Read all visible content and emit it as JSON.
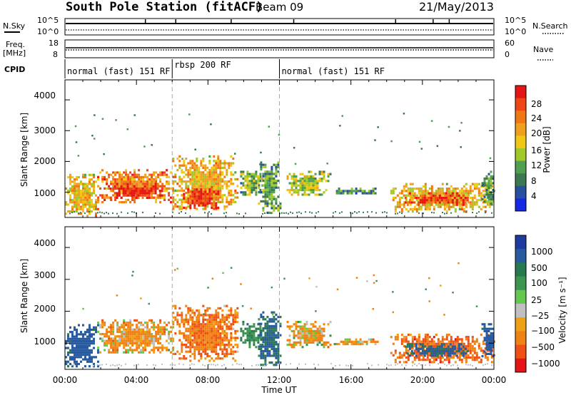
{
  "header": {
    "station": "South Pole Station (fitACF)",
    "beam": "Beam 09",
    "date": "21/May/2013"
  },
  "summary": {
    "nsky_label": "N.Sky",
    "nsearch_label": "N.Search",
    "nsky_ticks": [
      "10^5",
      "10^0"
    ],
    "nsearch_ticks": [
      "10^5",
      "10^0"
    ],
    "freq_label": "Freq.",
    "freq_unit": "[MHz]",
    "freq_ticks": [
      "18",
      "8"
    ],
    "nave_label": "Nave",
    "nave_ticks": [
      "60",
      "0"
    ],
    "cpid_label": "CPID",
    "cpid_segments": [
      {
        "label": "normal (fast) 151 RF",
        "start_h": 0,
        "end_h": 6
      },
      {
        "label": "rbsp 200 RF",
        "start_h": 6,
        "end_h": 12
      },
      {
        "label": "normal (fast) 151 RF",
        "start_h": 12,
        "end_h": 24
      }
    ]
  },
  "panels": {
    "power": {
      "ylabel": "Slant Range [km]",
      "yticks": [
        "4000",
        "3000",
        "2000",
        "1000"
      ],
      "colorbar_label": "Power [dB]",
      "colorbar_ticks": [
        "28",
        "24",
        "20",
        "16",
        "12",
        "8",
        "4"
      ]
    },
    "velocity": {
      "ylabel": "Slant Range [km]",
      "yticks": [
        "4000",
        "3000",
        "2000",
        "1000"
      ],
      "colorbar_label": "Velocity [m s⁻¹]",
      "colorbar_ticks": [
        "1000",
        "500",
        "100",
        "25",
        "−25",
        "−100",
        "−500",
        "−1000"
      ]
    }
  },
  "xaxis": {
    "label": "Time UT",
    "ticks": [
      "00:00",
      "04:00",
      "08:00",
      "12:00",
      "16:00",
      "20:00",
      "00:00"
    ]
  },
  "colors": {
    "power_scale": [
      "#1428e6",
      "#2850a0",
      "#3c7850",
      "#50a050",
      "#a0c828",
      "#f0c814",
      "#f0a01e",
      "#f07814",
      "#f04614",
      "#e61414"
    ],
    "velocity_scale": [
      "#1e3ca0",
      "#285aa0",
      "#287850",
      "#3c9650",
      "#64c850",
      "#c0c0c0",
      "#f0a014",
      "#f08214",
      "#f05014",
      "#e61414"
    ]
  },
  "chart_data": [
    {
      "type": "heatmap",
      "title": "Power",
      "x_range_h": [
        0,
        24
      ],
      "y_range_km": [
        180,
        4650
      ],
      "ylabel": "Slant Range [km]",
      "xlabel": "Time UT",
      "color_range": [
        0,
        30
      ],
      "colorbar_label": "Power [dB]",
      "echo_regions": [
        {
          "t0": 0.0,
          "t1": 1.8,
          "r0": 250,
          "r1": 1600,
          "level": 18
        },
        {
          "t0": 1.8,
          "t1": 6.0,
          "r0": 700,
          "r1": 1750,
          "level": 22
        },
        {
          "t0": 2.5,
          "t1": 5.5,
          "r0": 800,
          "r1": 1300,
          "level": 28
        },
        {
          "t0": 6.0,
          "t1": 9.6,
          "r0": 450,
          "r1": 2200,
          "level": 18
        },
        {
          "t0": 6.6,
          "t1": 8.6,
          "r0": 500,
          "r1": 1200,
          "level": 26
        },
        {
          "t0": 9.8,
          "t1": 11.0,
          "r0": 900,
          "r1": 1700,
          "level": 12
        },
        {
          "t0": 10.8,
          "t1": 12.0,
          "r0": 300,
          "r1": 2000,
          "level": 10
        },
        {
          "t0": 12.4,
          "t1": 14.8,
          "r0": 900,
          "r1": 1700,
          "level": 14
        },
        {
          "t0": 14.8,
          "t1": 17.5,
          "r0": 950,
          "r1": 1150,
          "level": 8
        },
        {
          "t0": 18.2,
          "t1": 24.0,
          "r0": 400,
          "r1": 1300,
          "level": 18
        },
        {
          "t0": 19.0,
          "t1": 22.5,
          "r0": 600,
          "r1": 1000,
          "level": 26
        },
        {
          "t0": 23.3,
          "t1": 24.0,
          "r0": 600,
          "r1": 1700,
          "level": 10
        }
      ]
    },
    {
      "type": "heatmap",
      "title": "Velocity",
      "x_range_h": [
        0,
        24
      ],
      "y_range_km": [
        180,
        4650
      ],
      "ylabel": "Slant Range [km]",
      "xlabel": "Time UT",
      "color_range": [
        -1000,
        1000
      ],
      "colorbar_label": "Velocity [m s⁻¹]",
      "echo_regions": [
        {
          "t0": 0.0,
          "t1": 1.8,
          "r0": 250,
          "r1": 1600,
          "level": 700
        },
        {
          "t0": 1.8,
          "t1": 6.0,
          "r0": 700,
          "r1": 1750,
          "level": -120
        },
        {
          "t0": 6.0,
          "t1": 9.6,
          "r0": 450,
          "r1": 2200,
          "level": -250
        },
        {
          "t0": 9.8,
          "t1": 11.0,
          "r0": 900,
          "r1": 1700,
          "level": 300
        },
        {
          "t0": 10.8,
          "t1": 12.0,
          "r0": 300,
          "r1": 2000,
          "level": 500
        },
        {
          "t0": 12.4,
          "t1": 14.8,
          "r0": 900,
          "r1": 1700,
          "level": -80
        },
        {
          "t0": 14.8,
          "t1": 17.5,
          "r0": 950,
          "r1": 1150,
          "level": -100
        },
        {
          "t0": 18.2,
          "t1": 24.0,
          "r0": 400,
          "r1": 1300,
          "level": -300
        },
        {
          "t0": 19.0,
          "t1": 22.5,
          "r0": 600,
          "r1": 1000,
          "level": 600
        },
        {
          "t0": 23.3,
          "t1": 24.0,
          "r0": 600,
          "r1": 1700,
          "level": 700
        }
      ]
    }
  ]
}
